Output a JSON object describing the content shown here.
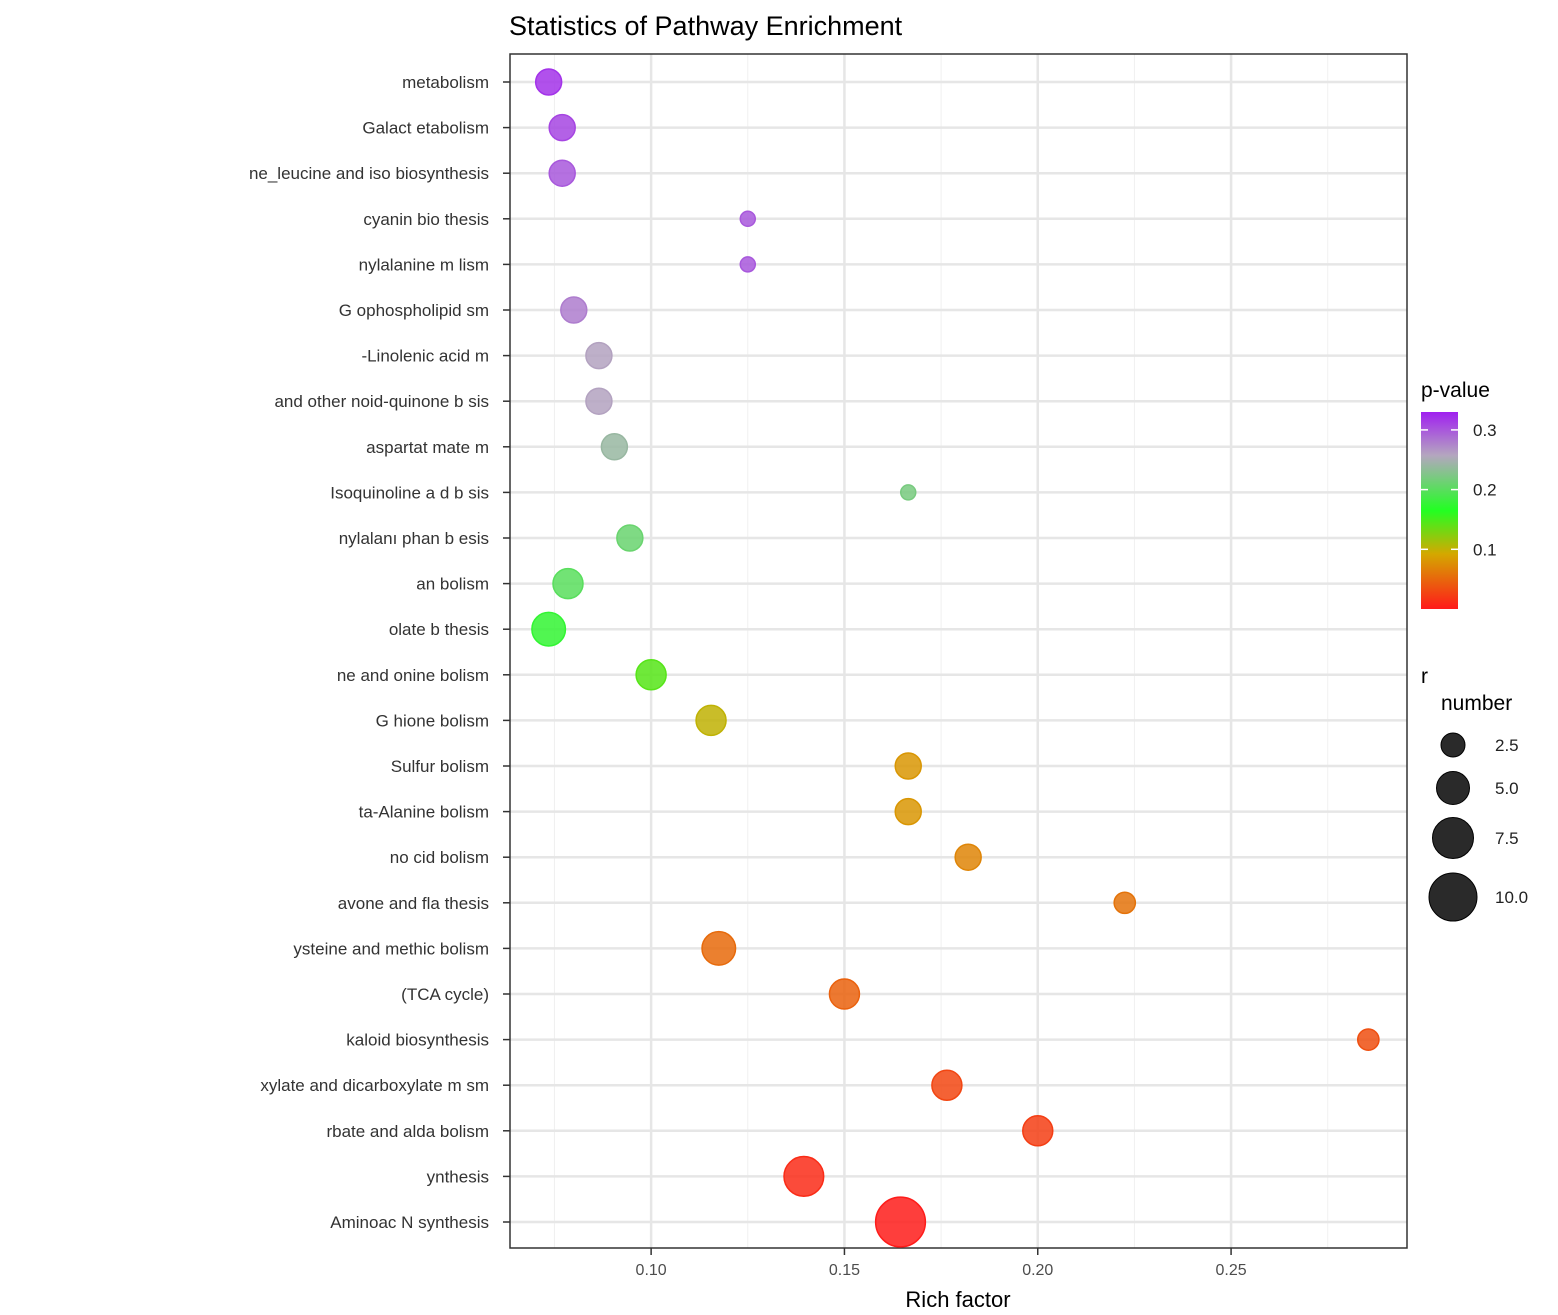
{
  "chart_data": {
    "type": "scatter",
    "title": "Statistics of Pathway Enrichment",
    "xlabel": "Rich factor",
    "ylabel": "",
    "xlim": [
      0.0635,
      0.2955
    ],
    "xticks": [
      0.1,
      0.15,
      0.2,
      0.25
    ],
    "xtick_labels": [
      "0.10",
      "0.15",
      "0.20",
      "0.25"
    ],
    "grid": true,
    "legend_position": "right",
    "color_legend": {
      "title": "p-value",
      "ticks": [
        0.3,
        0.2,
        0.1
      ],
      "tick_labels": [
        "0.3",
        "0.2",
        "0.1"
      ],
      "range": [
        0.0,
        0.33
      ],
      "colors": {
        "high": "#a020f0",
        "mid_high": "#b4a6bf",
        "mid": "#22ff22",
        "mid_low": "#d4a800",
        "low": "#ff1a1a"
      }
    },
    "size_legend": {
      "title": "number",
      "stray_text": "r",
      "values": [
        2.5,
        5.0,
        7.5,
        10.0
      ],
      "labels": [
        "2.5",
        "5.0",
        "7.5",
        "10.0"
      ],
      "radii": [
        12,
        16.5,
        20.5,
        24
      ]
    },
    "points": [
      {
        "label": "metabolism",
        "x": 0.0735,
        "number": 3,
        "p": 0.32
      },
      {
        "label": "Galact       etabolism",
        "x": 0.077,
        "number": 3,
        "p": 0.31
      },
      {
        "label": "ne_leucine and iso          biosynthesis",
        "x": 0.077,
        "number": 3,
        "p": 0.3
      },
      {
        "label": "cyanin bio     thesis",
        "x": 0.125,
        "number": 1,
        "p": 0.3
      },
      {
        "label": "nylalanine m        lism",
        "x": 0.125,
        "number": 1,
        "p": 0.3
      },
      {
        "label": "G       ophospholipid          sm",
        "x": 0.08,
        "number": 3,
        "p": 0.28
      },
      {
        "label": "-Linolenic acid           m",
        "x": 0.0865,
        "number": 3,
        "p": 0.26
      },
      {
        "label": "and other        noid-quinone b         sis",
        "x": 0.0865,
        "number": 3,
        "p": 0.26
      },
      {
        "label": "aspartat                mate          m",
        "x": 0.0905,
        "number": 3,
        "p": 0.24
      },
      {
        "label": "Isoquinoline a        d b         sis",
        "x": 0.1665,
        "number": 1,
        "p": 0.22
      },
      {
        "label": "nylalanı                               phan b          esis",
        "x": 0.0945,
        "number": 3,
        "p": 0.21
      },
      {
        "label": "an               bolism",
        "x": 0.0785,
        "number": 4,
        "p": 0.2
      },
      {
        "label": "olate b        thesis",
        "x": 0.0735,
        "number": 5,
        "p": 0.175
      },
      {
        "label": "ne and          onine         bolism",
        "x": 0.1,
        "number": 4,
        "p": 0.14
      },
      {
        "label": "G        hione          bolism",
        "x": 0.1155,
        "number": 4,
        "p": 0.09
      },
      {
        "label": "Sulfur           bolism",
        "x": 0.1665,
        "number": 3,
        "p": 0.07
      },
      {
        "label": "ta-Alanine          bolism",
        "x": 0.1665,
        "number": 3,
        "p": 0.07
      },
      {
        "label": "no       cid          bolism",
        "x": 0.182,
        "number": 3,
        "p": 0.06
      },
      {
        "label": "avone and fla           thesis",
        "x": 0.2225,
        "number": 2,
        "p": 0.05
      },
      {
        "label": "ysteine and methic            bolism",
        "x": 0.1175,
        "number": 5,
        "p": 0.045
      },
      {
        "label": "(TCA cycle)",
        "x": 0.15,
        "number": 4,
        "p": 0.04
      },
      {
        "label": "kaloid biosynthesis",
        "x": 0.2855,
        "number": 2,
        "p": 0.03
      },
      {
        "label": "xylate and dicarboxylate m           sm",
        "x": 0.1765,
        "number": 4,
        "p": 0.025
      },
      {
        "label": "rbate and alda           bolism",
        "x": 0.2,
        "number": 4,
        "p": 0.02
      },
      {
        "label": "ynthesis",
        "x": 0.1395,
        "number": 7,
        "p": 0.01
      },
      {
        "label": "Aminoac         N        synthesis",
        "x": 0.1645,
        "number": 11,
        "p": 0.001
      }
    ]
  }
}
